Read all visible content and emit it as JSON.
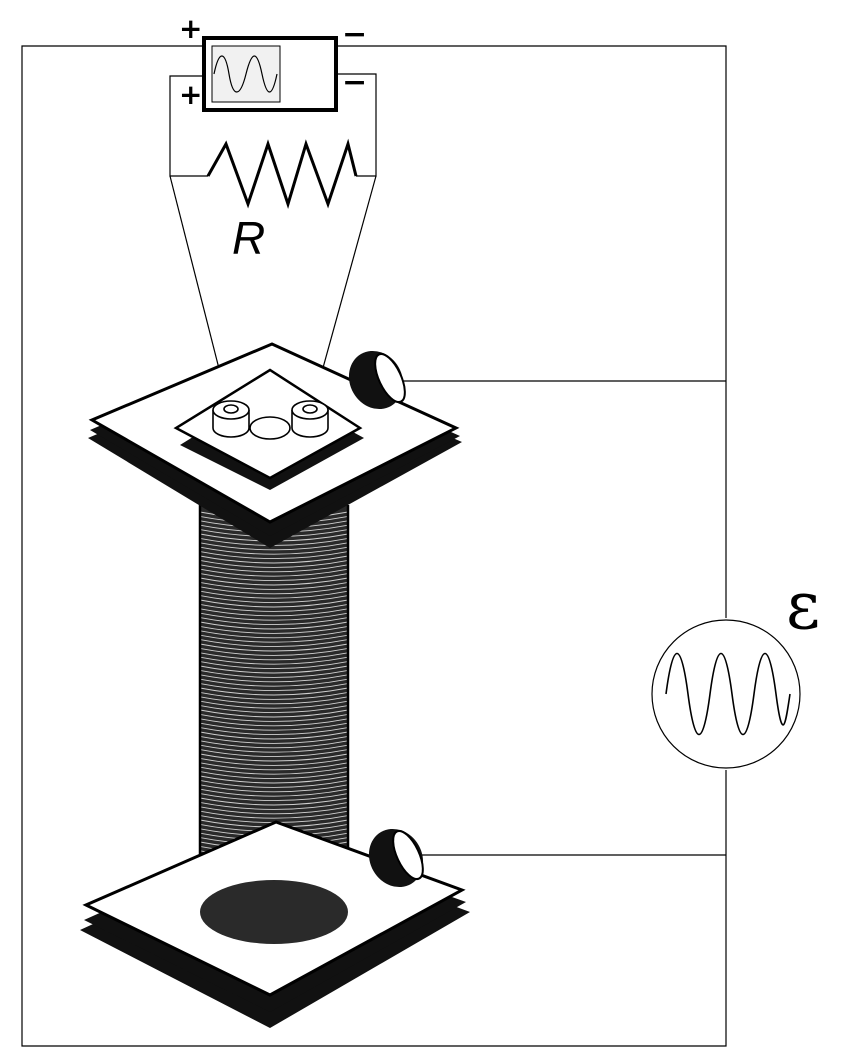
{
  "labels": {
    "resistor": "R",
    "emf": "ε",
    "scope_left_top_sign": "+",
    "scope_left_bottom_sign": "+",
    "scope_right_top_sign": "−",
    "scope_right_bottom_sign": "−"
  },
  "icons": {
    "oscilloscope": "sine-wave-display-icon",
    "ac_source": "sine-wave-source-icon",
    "resistor": "zigzag-resistor-icon",
    "coil": "solenoid-coil-icon"
  }
}
